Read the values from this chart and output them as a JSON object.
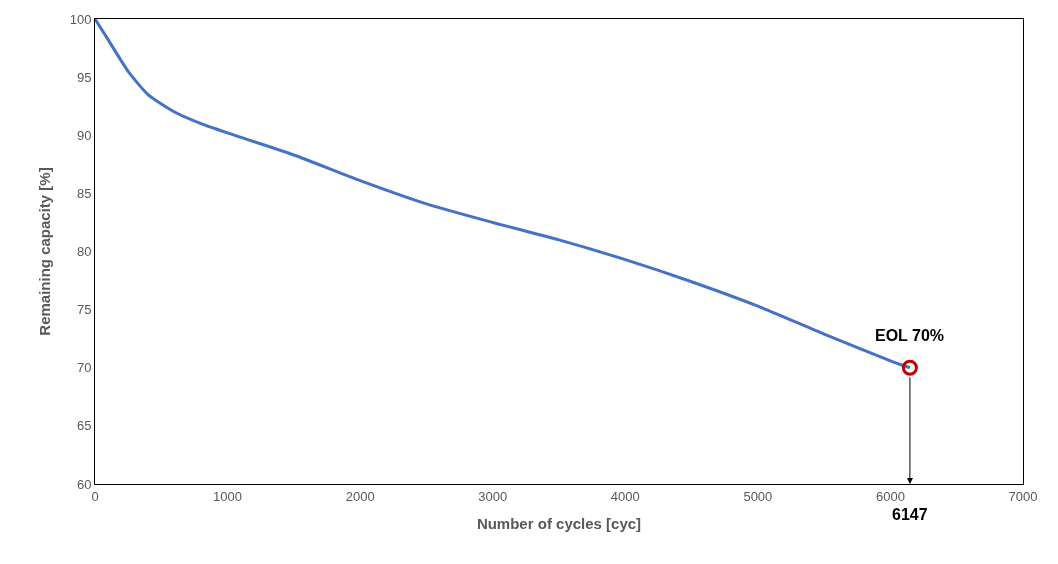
{
  "chart_data": {
    "type": "line",
    "xlabel": "Number of cycles [cyc]",
    "ylabel": "Remaining capacity [%]",
    "series": [
      {
        "color": "#4472c4",
        "x": [
          0,
          100,
          250,
          400,
          600,
          800,
          1000,
          1500,
          2000,
          2500,
          3000,
          3500,
          4000,
          4500,
          5000,
          5500,
          6000,
          6147
        ],
        "values": [
          100,
          98.2,
          95.5,
          93.5,
          92,
          91,
          90.2,
          88.3,
          86.1,
          84.1,
          82.5,
          81,
          79.3,
          77.4,
          75.3,
          72.9,
          70.6,
          70
        ]
      },
      {
        "type": "scatter",
        "color": "#c00000",
        "x": [
          6147
        ],
        "values": [
          70
        ]
      }
    ],
    "xlim": [
      0,
      7000
    ],
    "xticks": [
      0,
      1000,
      2000,
      3000,
      4000,
      5000,
      6000,
      7000
    ],
    "ylim": [
      60,
      100
    ],
    "yticks": [
      60,
      65,
      70,
      75,
      80,
      85,
      90,
      95,
      100
    ],
    "annotations": [
      {
        "text": "EOL 70%",
        "x": 6147,
        "y": 70
      },
      "6147"
    ]
  }
}
